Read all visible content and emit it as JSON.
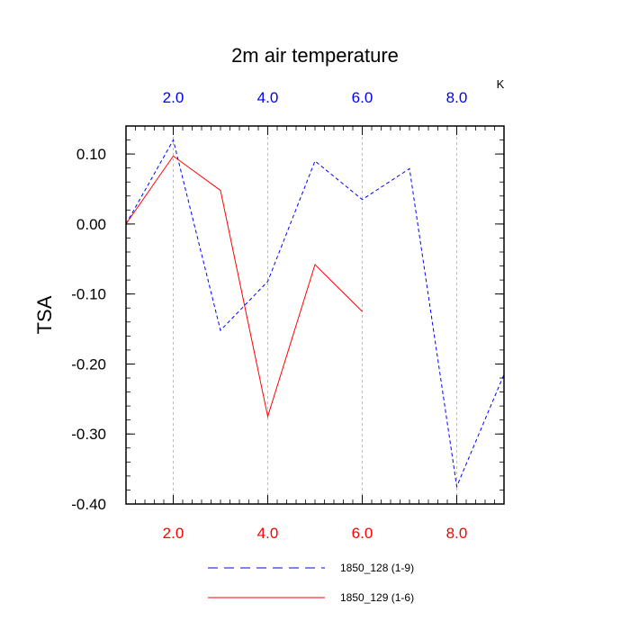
{
  "chart_data": {
    "type": "line",
    "title": "2m air temperature",
    "units": "K",
    "ylabel": "TSA",
    "xlim": [
      1,
      9
    ],
    "ylim": [
      -0.4,
      0.14
    ],
    "x_ticks": [
      2,
      4,
      6,
      8
    ],
    "x_tick_labels": [
      "2.0",
      "4.0",
      "6.0",
      "8.0"
    ],
    "y_ticks": [
      0.1,
      0.0,
      -0.1,
      -0.2,
      -0.3,
      -0.4
    ],
    "y_tick_labels": [
      "0.10",
      "0.00",
      "-0.10",
      "-0.20",
      "-0.30",
      "-0.40"
    ],
    "grid": "vertical-dashed",
    "legend_position": "bottom",
    "series": [
      {
        "name": "1850_128 (1-9)",
        "color": "#0000ff",
        "dash": "dashed",
        "x": [
          1,
          2,
          3,
          4,
          5,
          6,
          7,
          8,
          9
        ],
        "y": [
          0.0,
          0.12,
          -0.152,
          -0.082,
          0.09,
          0.035,
          0.079,
          -0.375,
          -0.215
        ]
      },
      {
        "name": "1850_129 (1-6)",
        "color": "#ff0000",
        "dash": "solid",
        "x": [
          1,
          2,
          3,
          4,
          5,
          6
        ],
        "y": [
          0.0,
          0.097,
          0.048,
          -0.275,
          -0.058,
          -0.125
        ]
      }
    ],
    "colors": {
      "top_axis": "#0000ff",
      "bottom_axis": "#ff0000",
      "axis": "#000000",
      "grid": "#aaaaaa"
    }
  }
}
